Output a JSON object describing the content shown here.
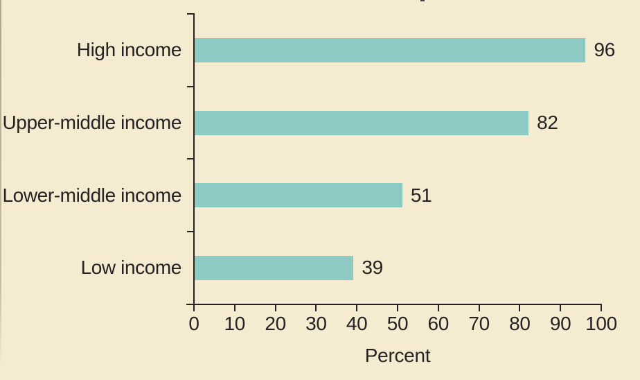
{
  "chart_data": {
    "type": "bar",
    "orientation": "horizontal",
    "categories": [
      "High income",
      "Upper-middle income",
      "Lower-middle income",
      "Low income"
    ],
    "values": [
      96,
      82,
      51,
      39
    ],
    "value_labels": [
      "96",
      "82",
      "51",
      "39"
    ],
    "xlabel": "Percent",
    "xlim": [
      0,
      100
    ],
    "xticks": [
      0,
      10,
      20,
      30,
      40,
      50,
      60,
      70,
      80,
      90,
      100
    ],
    "grid": "off",
    "legend": "none"
  },
  "colors": {
    "background": "#f5ebd0",
    "bar": "#8ccac3",
    "ink": "#262122"
  }
}
